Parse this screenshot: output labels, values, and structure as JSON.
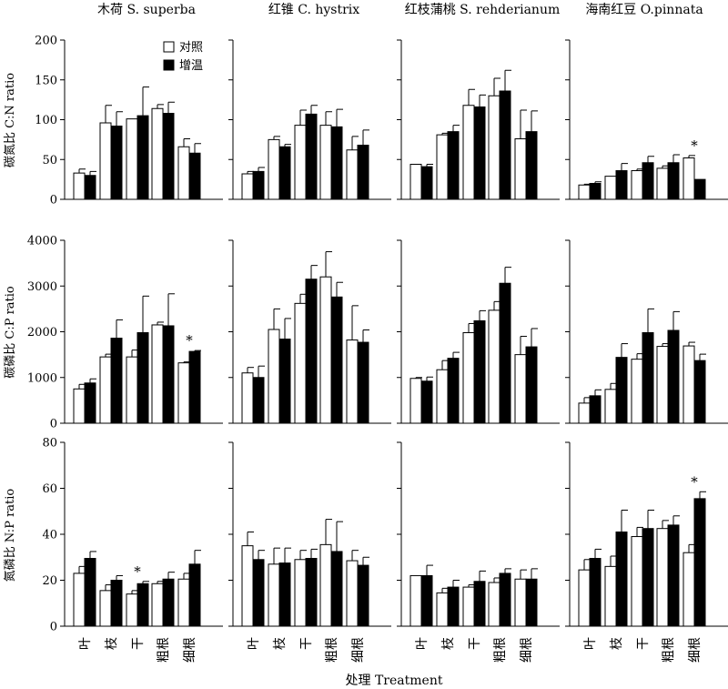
{
  "chart_data": {
    "type": "bar",
    "xlabel": "处理 Treatment",
    "categories": [
      "叶",
      "枝",
      "干",
      "粗根",
      "细根"
    ],
    "legend": {
      "position": "top-left of first panel",
      "items": [
        {
          "label": "对照",
          "color": "#ffffff"
        },
        {
          "label": "增温",
          "color": "#000000"
        }
      ]
    },
    "columns": [
      "木荷 S. superba",
      "红锥 C. hystrix",
      "红枝蒲桃 S. rehderianum",
      "海南红豆 O.pinnata"
    ],
    "rows": [
      {
        "ylabel": "碳氮比 C:N ratio",
        "ylim": [
          0,
          200
        ],
        "yticks": [
          0,
          50,
          100,
          150,
          200
        ],
        "panels": [
          {
            "control": [
              33,
              96,
              101,
              114,
              66
            ],
            "control_err": [
              5,
              22,
              0,
              5,
              10
            ],
            "warming": [
              30,
              92,
              105,
              108,
              58
            ],
            "warming_err": [
              5,
              18,
              36,
              14,
              12
            ],
            "sig": []
          },
          {
            "control": [
              32,
              75,
              93,
              93,
              62
            ],
            "control_err": [
              3,
              4,
              19,
              17,
              17
            ],
            "warming": [
              35,
              66,
              107,
              91,
              68
            ],
            "warming_err": [
              5,
              3,
              11,
              22,
              19
            ],
            "sig": []
          },
          {
            "control": [
              44,
              81,
              118,
              130,
              76
            ],
            "control_err": [
              0,
              2,
              20,
              22,
              36
            ],
            "warming": [
              41,
              85,
              116,
              136,
              85
            ],
            "warming_err": [
              3,
              8,
              15,
              26,
              26
            ],
            "sig": []
          },
          {
            "control": [
              18,
              29,
              36,
              39,
              52
            ],
            "control_err": [
              1,
              0,
              2,
              3,
              3
            ],
            "warming": [
              20,
              36,
              46,
              46,
              25
            ],
            "warming_err": [
              2,
              9,
              8,
              10,
              0
            ],
            "sig": [
              4
            ]
          }
        ]
      },
      {
        "ylabel": "碳磷比 C:P ratio",
        "ylim": [
          0,
          4000
        ],
        "yticks": [
          0,
          1000,
          2000,
          3000,
          4000
        ],
        "panels": [
          {
            "control": [
              750,
              1450,
              1450,
              2150,
              1320
            ],
            "control_err": [
              100,
              60,
              150,
              60,
              20
            ],
            "warming": [
              880,
              1860,
              1980,
              2130,
              1570
            ],
            "warming_err": [
              90,
              400,
              800,
              700,
              20
            ],
            "sig": [
              4
            ]
          },
          {
            "control": [
              1100,
              2050,
              2620,
              3200,
              1820
            ],
            "control_err": [
              120,
              450,
              200,
              550,
              750
            ],
            "warming": [
              1000,
              1840,
              3150,
              2760,
              1770
            ],
            "warming_err": [
              250,
              450,
              300,
              320,
              270
            ],
            "sig": []
          },
          {
            "control": [
              980,
              1170,
              1980,
              2470,
              1500
            ],
            "control_err": [
              20,
              200,
              200,
              190,
              400
            ],
            "warming": [
              920,
              1420,
              2240,
              3060,
              1670
            ],
            "warming_err": [
              90,
              130,
              220,
              350,
              400
            ],
            "sig": []
          },
          {
            "control": [
              440,
              740,
              1400,
              1680,
              1690
            ],
            "control_err": [
              120,
              130,
              120,
              60,
              80
            ],
            "warming": [
              600,
              1440,
              1980,
              2030,
              1370
            ],
            "warming_err": [
              130,
              300,
              520,
              410,
              140
            ],
            "sig": []
          }
        ]
      },
      {
        "ylabel": "氮磷比 N:P ratio",
        "ylim": [
          0,
          80
        ],
        "yticks": [
          0,
          20,
          40,
          60,
          80
        ],
        "panels": [
          {
            "control": [
              23,
              15.5,
              14,
              18.5,
              20.5
            ],
            "control_err": [
              3,
              2.5,
              1.5,
              1,
              2.5
            ],
            "warming": [
              29.5,
              20,
              18.5,
              20.5,
              27
            ],
            "warming_err": [
              3,
              2,
              1,
              3,
              6
            ],
            "sig": [
              2
            ]
          },
          {
            "control": [
              35,
              27,
              29,
              35.5,
              28.5
            ],
            "control_err": [
              6,
              7,
              4,
              11,
              4.5
            ],
            "warming": [
              29,
              27.5,
              29.5,
              32.5,
              26.5
            ],
            "warming_err": [
              4,
              6.5,
              4,
              13,
              3.5
            ],
            "sig": []
          },
          {
            "control": [
              22,
              14.5,
              17,
              19,
              20.5
            ],
            "control_err": [
              0,
              2,
              1,
              2,
              4
            ],
            "warming": [
              22,
              17,
              19.5,
              23,
              20.5
            ],
            "warming_err": [
              4.5,
              3,
              4.5,
              2,
              4.5
            ],
            "sig": []
          },
          {
            "control": [
              24.5,
              26,
              39,
              42.5,
              32
            ],
            "control_err": [
              4.5,
              4.5,
              4,
              3.5,
              3.5
            ],
            "warming": [
              29.5,
              41,
              42.5,
              44,
              55.5
            ],
            "warming_err": [
              4,
              9.5,
              8,
              4,
              3
            ],
            "sig": [
              4
            ]
          }
        ]
      }
    ]
  }
}
